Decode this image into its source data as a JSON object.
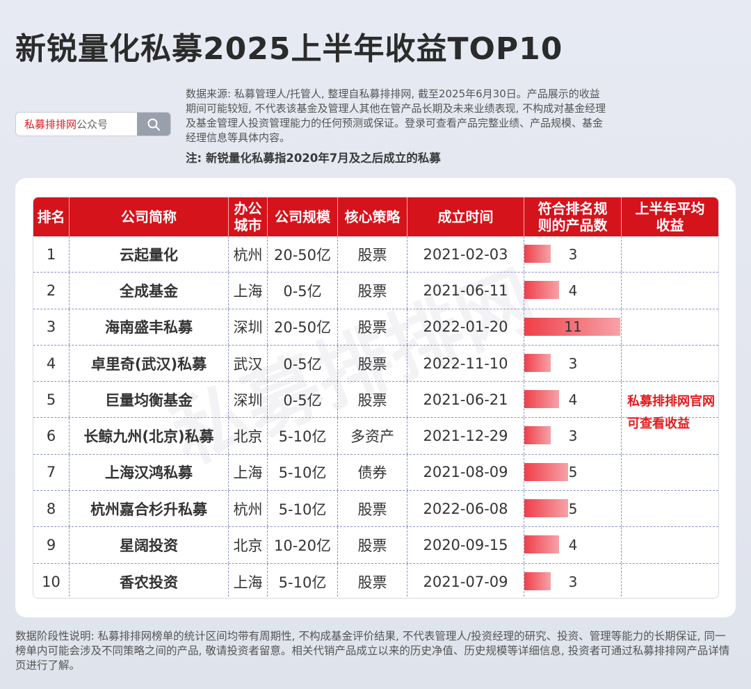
{
  "title": "新锐量化私募2025上半年收益TOP10",
  "search": {
    "brand_red": "私募排排网",
    "brand_gray": "公众号",
    "icon": "search-icon"
  },
  "disclaimer": "数据来源: 私募管理人/托管人, 整理自私募排排网, 截至2025年6月30日。产品展示的收益期间可能较短, 不代表该基金及管理人其他在管产品长期及未来业绩表现, 不构成对基金经理及基金管理人投资管理能力的任何预测或保证。登录可查看产品完整业绩、产品规模、基金经理信息等具体内容。",
  "note": "注: 新锐量化私募指2020年7月及之后成立的私募",
  "table": {
    "headers": {
      "rank": "排名",
      "company": "公司简称",
      "city_1": "办公",
      "city_2": "城市",
      "scale": "公司规模",
      "strategy": "核心策略",
      "founded": "成立时间",
      "count_1": "符合排名规",
      "count_2": "则的产品数",
      "return_1": "上半年平均",
      "return_2": "收益"
    },
    "rows": [
      {
        "rank": "1",
        "company": "云起量化",
        "city": "杭州",
        "scale": "20-50亿",
        "strategy": "股票",
        "founded": "2021-02-03",
        "count": "3",
        "count_value": 3
      },
      {
        "rank": "2",
        "company": "全成基金",
        "city": "上海",
        "scale": "0-5亿",
        "strategy": "股票",
        "founded": "2021-06-11",
        "count": "4",
        "count_value": 4
      },
      {
        "rank": "3",
        "company": "海南盛丰私募",
        "city": "深圳",
        "scale": "20-50亿",
        "strategy": "股票",
        "founded": "2022-01-20",
        "count": "11",
        "count_value": 11
      },
      {
        "rank": "4",
        "company": "卓里奇(武汉)私募",
        "city": "武汉",
        "scale": "0-5亿",
        "strategy": "股票",
        "founded": "2022-11-10",
        "count": "3",
        "count_value": 3
      },
      {
        "rank": "5",
        "company": "巨量均衡基金",
        "city": "深圳",
        "scale": "0-5亿",
        "strategy": "股票",
        "founded": "2021-06-21",
        "count": "4",
        "count_value": 4
      },
      {
        "rank": "6",
        "company": "长鲸九州(北京)私募",
        "city": "北京",
        "scale": "5-10亿",
        "strategy": "多资产",
        "founded": "2021-12-29",
        "count": "3",
        "count_value": 3
      },
      {
        "rank": "7",
        "company": "上海汉鸿私募",
        "city": "上海",
        "scale": "5-10亿",
        "strategy": "债券",
        "founded": "2021-08-09",
        "count": "5",
        "count_value": 5
      },
      {
        "rank": "8",
        "company": "杭州嘉合杉升私募",
        "city": "杭州",
        "scale": "5-10亿",
        "strategy": "股票",
        "founded": "2022-06-08",
        "count": "5",
        "count_value": 5
      },
      {
        "rank": "9",
        "company": "星阔投资",
        "city": "北京",
        "scale": "10-20亿",
        "strategy": "股票",
        "founded": "2020-09-15",
        "count": "4",
        "count_value": 4
      },
      {
        "rank": "10",
        "company": "香农投资",
        "city": "上海",
        "scale": "5-10亿",
        "strategy": "股票",
        "founded": "2021-07-09",
        "count": "3",
        "count_value": 3
      }
    ],
    "count_max": 11,
    "bar_color": "#ef3f49",
    "header_color": "#d5131b"
  },
  "side_note": {
    "line1": "私募排排网官网",
    "line2": "可查看收益"
  },
  "watermark": "私募排排网",
  "footer": "数据阶段性说明: 私募排排网榜单的统计区间均带有周期性, 不构成基金评价结果, 不代表管理人/投资经理的研究、投资、管理等能力的长期保证, 同一榜单内可能会涉及不同策略之间的产品, 敬请投资者留意。相关代销产品成立以来的历史净值、历史规模等详细信息, 投资者可通过私募排排网产品详情页进行了解。"
}
